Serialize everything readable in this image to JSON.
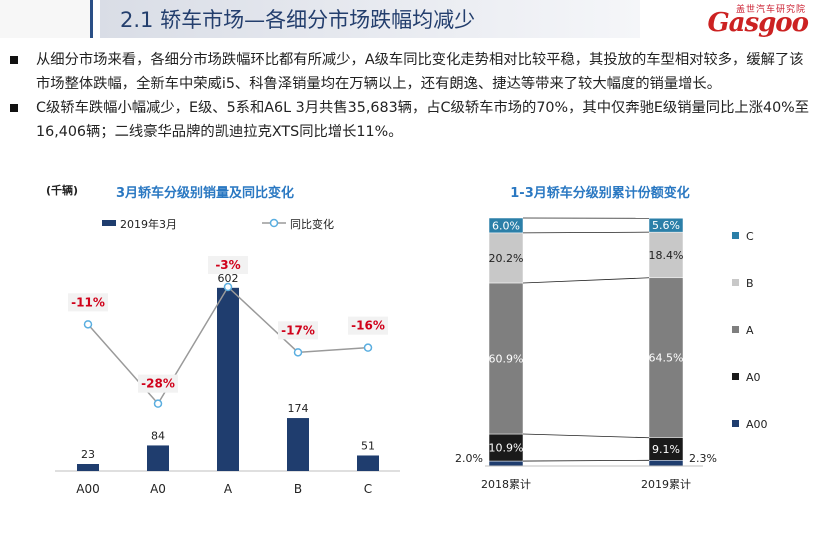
{
  "header": {
    "title": "2.1 轿车市场—各细分市场跌幅均减少",
    "logo_cn": "盖世汽车研究院",
    "logo_en": "Gasgoo"
  },
  "bullets": [
    "从细分市场来看，各细分市场跌幅环比都有所减少，A级车同比变化走势相对比较平稳，其投放的车型相对较多，缓解了该市场整体跌幅，全新车中荣威i5、科鲁泽销量均在万辆以上，还有朗逸、捷达等带来了较大幅度的销量增长。",
    "C级轿车跌幅小幅减少，E级、5系和A6L 3月共售35,683辆，占C级轿车市场的70%，其中仅奔驰E级销量同比上涨40%至16,406辆；二线豪华品牌的凯迪拉克XTS同比增长11%。"
  ],
  "colors": {
    "navy": "#1f3d6e",
    "red": "#d0021b",
    "title_blue": "#2a78c2"
  },
  "chart_data": [
    {
      "type": "bar",
      "title": "3月轿车分级别销量及同比变化",
      "unit": "(千辆)",
      "categories": [
        "A00",
        "A0",
        "A",
        "B",
        "C"
      ],
      "series": [
        {
          "name": "2019年3月",
          "type": "bar",
          "values": [
            23,
            84,
            602,
            174,
            51
          ]
        },
        {
          "name": "同比变化",
          "type": "line",
          "values": [
            -11,
            -28,
            -3,
            -17,
            -16
          ],
          "labels": [
            "-11%",
            "-28%",
            "-3%",
            "-17%",
            "-16%"
          ]
        }
      ],
      "value_labels": [
        "23",
        "84",
        "602",
        "174",
        "51"
      ],
      "ylim": [
        0,
        700
      ],
      "legend": "top"
    },
    {
      "type": "bar",
      "stacked": true,
      "title": "1-3月轿车分级别累计份额变化",
      "categories": [
        "2018累计",
        "2019累计"
      ],
      "series": [
        {
          "name": "A00",
          "values": [
            2.0,
            2.3
          ],
          "labels": [
            "2.0%",
            "2.3%"
          ],
          "color": "#1f3d6e"
        },
        {
          "name": "A0",
          "values": [
            10.9,
            9.1
          ],
          "labels": [
            "10.9%",
            "9.1%"
          ],
          "color": "#1a1a1a"
        },
        {
          "name": "A",
          "values": [
            60.9,
            64.5
          ],
          "labels": [
            "60.9%",
            "64.5%"
          ],
          "color": "#7f7f7f"
        },
        {
          "name": "B",
          "values": [
            20.2,
            18.4
          ],
          "labels": [
            "20.2%",
            "18.4%"
          ],
          "color": "#c8c8c8"
        },
        {
          "name": "C",
          "values": [
            6.0,
            5.6
          ],
          "labels": [
            "6.0%",
            "5.6%"
          ],
          "color": "#2b7fa8"
        }
      ],
      "legend": "right"
    }
  ]
}
